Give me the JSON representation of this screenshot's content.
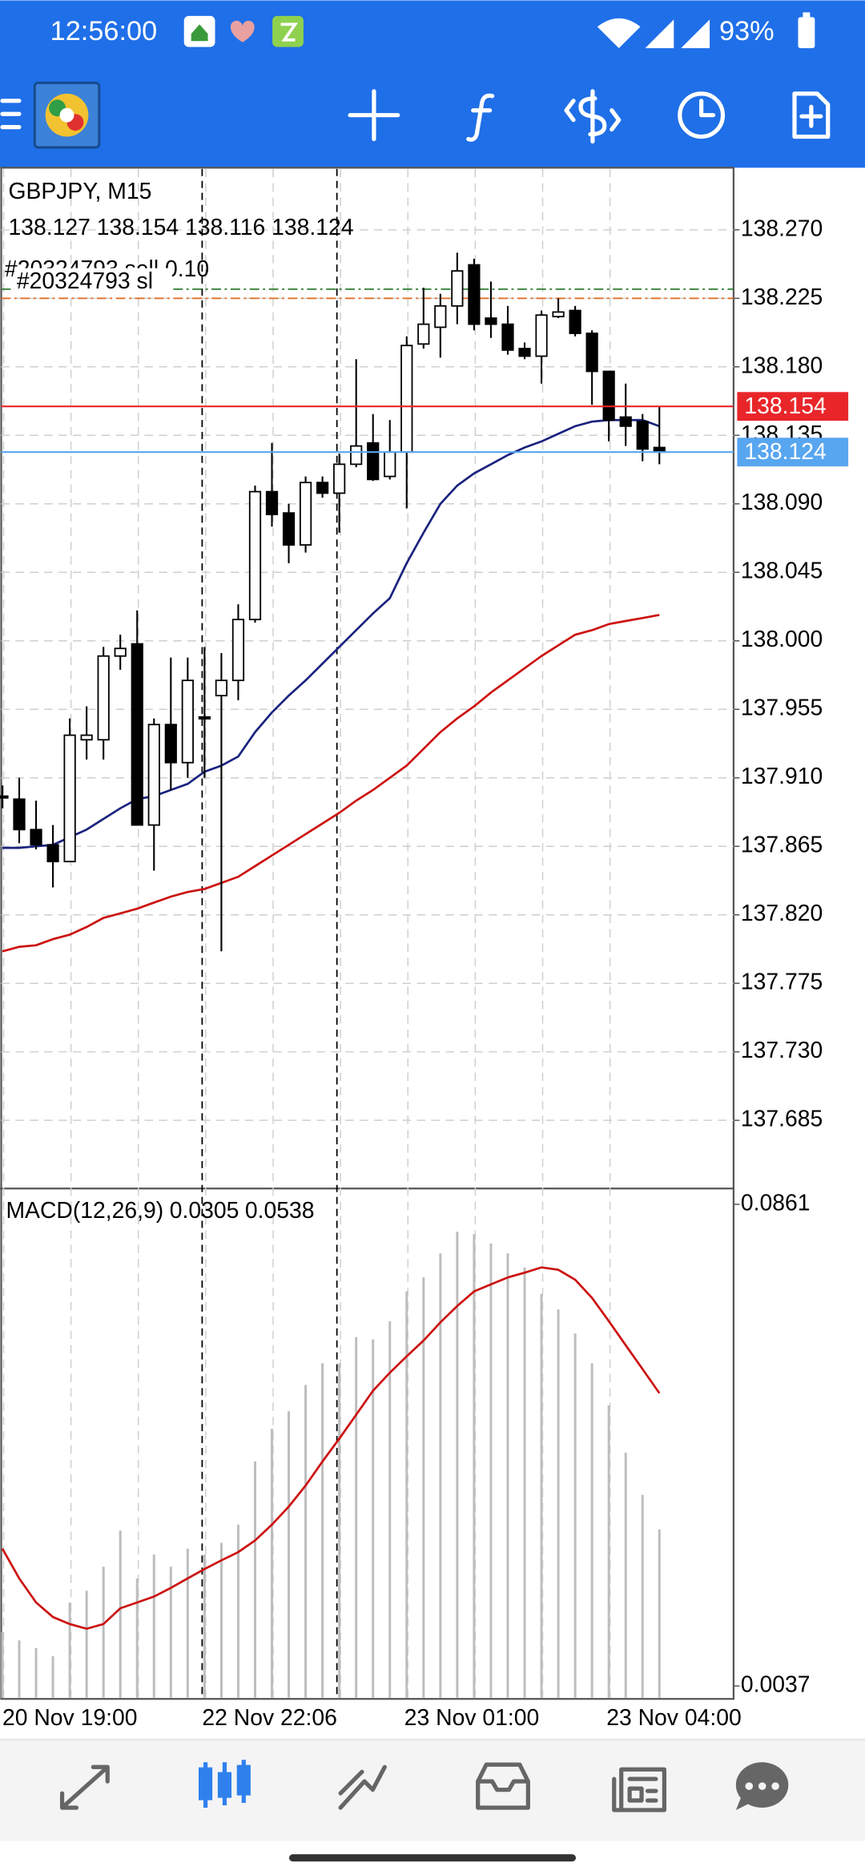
{
  "status_bar": {
    "time": "12:56:00",
    "battery": "93%"
  },
  "chart_data": [
    {
      "type": "candlestick",
      "title": "GBPJPY, M15",
      "subtitle": "138.127 138.154 138.116 138.124",
      "categories": [
        "20 Nov 19:00",
        null,
        null,
        null,
        null,
        null,
        null,
        null,
        null,
        null,
        null,
        null,
        "22 Nov 22:06",
        null,
        null,
        null,
        null,
        null,
        null,
        null,
        null,
        null,
        null,
        null,
        "23 Nov 01:00",
        null,
        null,
        null,
        null,
        null,
        null,
        null,
        null,
        null,
        null,
        null,
        "23 Nov 04:00",
        null,
        null,
        null
      ],
      "open": [
        137.898,
        137.896,
        137.876,
        137.866,
        137.855,
        137.935,
        137.935,
        137.99,
        137.998,
        137.879,
        137.945,
        137.92,
        137.95,
        137.964,
        137.974,
        138.014,
        138.098,
        138.084,
        138.063,
        138.104,
        138.097,
        138.116,
        138.13,
        138.108,
        138.124,
        138.195,
        138.206,
        138.22,
        138.247,
        138.212,
        138.208,
        138.192,
        138.187,
        138.213,
        138.217,
        138.202,
        138.177,
        138.147,
        138.144,
        138.127
      ],
      "high": [
        137.905,
        137.91,
        137.895,
        137.879,
        137.949,
        137.957,
        137.996,
        138.004,
        138.02,
        137.949,
        137.989,
        137.989,
        137.996,
        137.992,
        138.024,
        138.102,
        138.13,
        138.09,
        138.108,
        138.108,
        138.123,
        138.185,
        138.149,
        138.145,
        138.2,
        138.232,
        138.228,
        138.255,
        138.251,
        138.236,
        138.22,
        138.196,
        138.217,
        138.225,
        138.22,
        138.204,
        138.177,
        138.169,
        138.149,
        138.154
      ],
      "low": [
        137.89,
        137.867,
        137.863,
        137.838,
        137.855,
        137.922,
        137.922,
        137.981,
        137.879,
        137.849,
        137.902,
        137.91,
        137.91,
        137.796,
        137.961,
        138.012,
        138.075,
        138.051,
        138.058,
        138.094,
        138.071,
        138.114,
        138.105,
        138.106,
        138.087,
        138.192,
        138.186,
        138.208,
        138.204,
        138.199,
        138.188,
        138.185,
        138.169,
        138.212,
        138.2,
        138.155,
        138.131,
        138.128,
        138.118,
        138.116
      ],
      "close": [
        137.897,
        137.876,
        137.866,
        137.855,
        137.938,
        137.938,
        137.99,
        137.995,
        137.879,
        137.945,
        137.92,
        137.974,
        137.949,
        137.974,
        138.014,
        138.098,
        138.083,
        138.063,
        138.104,
        138.097,
        138.116,
        138.128,
        138.106,
        138.124,
        138.194,
        138.208,
        138.22,
        138.243,
        138.208,
        138.208,
        138.191,
        138.187,
        138.214,
        138.216,
        138.202,
        138.177,
        138.145,
        138.141,
        138.126,
        138.124
      ],
      "up_color": "#ffffff",
      "down_color": "#000000",
      "series": [
        {
          "color": "#1a237e",
          "values": [
            137.864,
            137.864,
            137.865,
            137.866,
            137.871,
            137.876,
            137.883,
            137.89,
            137.896,
            137.898,
            137.902,
            137.906,
            137.914,
            137.918,
            137.924,
            137.94,
            137.953,
            137.964,
            137.974,
            137.985,
            137.996,
            138.007,
            138.018,
            138.028,
            138.051,
            138.071,
            138.09,
            138.102,
            138.11,
            138.116,
            138.122,
            138.127,
            138.131,
            138.136,
            138.141,
            138.144,
            138.145,
            138.145,
            138.145,
            138.141
          ]
        },
        {
          "color": "#cc1111",
          "values": [
            137.796,
            137.799,
            137.8,
            137.804,
            137.807,
            137.812,
            137.818,
            137.821,
            137.824,
            137.828,
            137.832,
            137.835,
            137.837,
            137.841,
            137.845,
            137.852,
            137.859,
            137.866,
            137.873,
            137.88,
            137.887,
            137.895,
            137.902,
            137.91,
            137.918,
            137.929,
            137.94,
            137.949,
            137.957,
            137.966,
            137.974,
            137.982,
            137.99,
            137.997,
            138.004,
            138.007,
            138.011,
            138.013,
            138.015,
            138.017
          ]
        }
      ],
      "price_lines": [
        {
          "value": 138.154,
          "color": "#e8262a"
        },
        {
          "value": 138.124,
          "color": "#58a6f0"
        }
      ],
      "order_lines": [
        {
          "value": 138.231,
          "color": "#2e7d32"
        },
        {
          "value": 138.225,
          "color": "#e0702a"
        }
      ],
      "annotations": [
        "#20324793 sell 0.10",
        "#20324793 sl"
      ],
      "ylim": [
        137.641,
        138.31
      ],
      "yticks": [
        {
          "value": 138.27,
          "label": "138.270"
        },
        {
          "value": 138.225,
          "label": "138.225"
        },
        {
          "value": 138.18,
          "label": "138.180"
        },
        {
          "value": 138.135,
          "label": "138.135"
        },
        {
          "value": 138.09,
          "label": "138.090"
        },
        {
          "value": 138.045,
          "label": "138.045"
        },
        {
          "value": 138.0,
          "label": "138.000"
        },
        {
          "value": 137.955,
          "label": "137.955"
        },
        {
          "value": 137.91,
          "label": "137.910"
        },
        {
          "value": 137.865,
          "label": "137.865"
        },
        {
          "value": 137.82,
          "label": "137.820"
        },
        {
          "value": 137.775,
          "label": "137.775"
        },
        {
          "value": 137.73,
          "label": "137.730"
        },
        {
          "value": 137.685,
          "label": "137.685"
        }
      ],
      "grid": true
    },
    {
      "type": "macd",
      "title": "MACD(12,26,9)",
      "values": [
        0.0129,
        0.0115,
        0.0102,
        0.0088,
        0.018,
        0.02,
        0.0241,
        0.0303,
        0.0221,
        0.0262,
        0.0241,
        0.0272,
        0.0262,
        0.0282,
        0.0313,
        0.0421,
        0.0477,
        0.0507,
        0.0552,
        0.0589,
        0.0589,
        0.0634,
        0.063,
        0.0661,
        0.0712,
        0.0736,
        0.0777,
        0.0814,
        0.081,
        0.0794,
        0.0777,
        0.0753,
        0.0708,
        0.0681,
        0.064,
        0.0589,
        0.0517,
        0.0436,
        0.0364,
        0.0305
      ],
      "color": "#bdbdbd",
      "series": [
        {
          "color": "#cc1111",
          "values": [
            0.0272,
            0.0221,
            0.018,
            0.0155,
            0.0143,
            0.0135,
            0.0143,
            0.017,
            0.018,
            0.019,
            0.0205,
            0.0221,
            0.0237,
            0.0252,
            0.0266,
            0.0286,
            0.0313,
            0.0344,
            0.038,
            0.0421,
            0.046,
            0.0501,
            0.0542,
            0.0573,
            0.0601,
            0.0628,
            0.0659,
            0.0687,
            0.0712,
            0.0724,
            0.0736,
            0.0744,
            0.0753,
            0.0749,
            0.0732,
            0.0701,
            0.0661,
            0.062,
            0.0579,
            0.0538
          ]
        }
      ],
      "ylim": [
        0.0017,
        0.0886
      ],
      "yticks": [
        0.0861,
        0.0037
      ]
    }
  ]
}
